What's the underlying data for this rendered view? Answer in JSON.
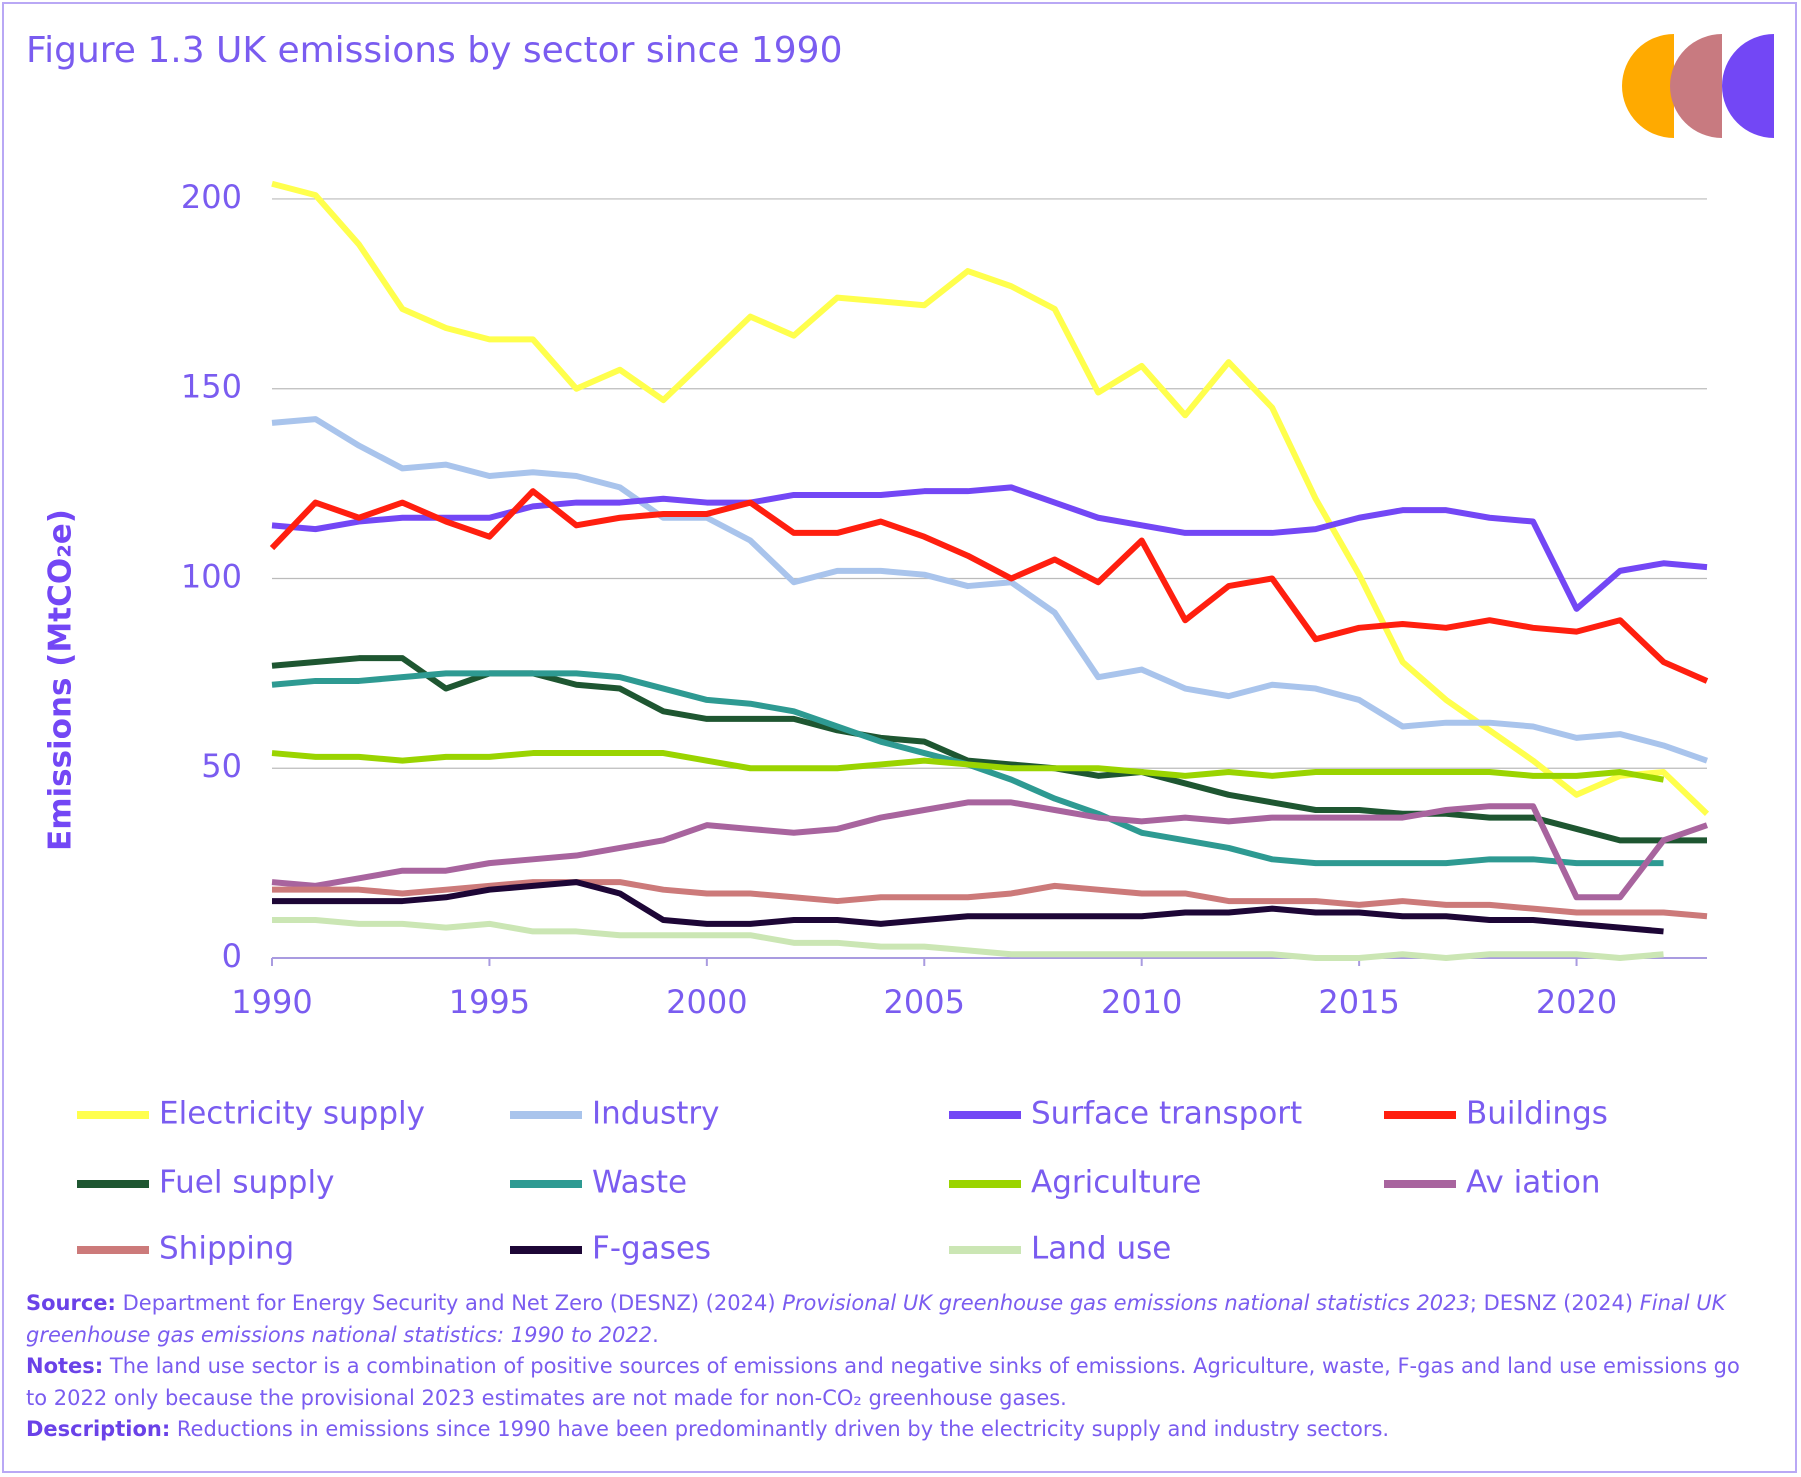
{
  "chart_data": {
    "type": "line",
    "title": "Figure 1.3 UK emissions by sector since 1990",
    "y_label": "Emissions (MtCO₂e)",
    "x": [
      1990,
      1991,
      1992,
      1993,
      1994,
      1995,
      1996,
      1997,
      1998,
      1999,
      2000,
      2001,
      2002,
      2003,
      2004,
      2005,
      2006,
      2007,
      2008,
      2009,
      2010,
      2011,
      2012,
      2013,
      2014,
      2015,
      2016,
      2017,
      2018,
      2019,
      2020,
      2021,
      2022,
      2023
    ],
    "xlim": [
      1990,
      2023
    ],
    "xticks": [
      1990,
      1995,
      2000,
      2005,
      2010,
      2015,
      2020
    ],
    "ylim": [
      0,
      210
    ],
    "yticks": [
      0,
      50,
      100,
      150,
      200
    ],
    "grid": true,
    "series": [
      {
        "name": "Electricity supply",
        "color": "#ffff4d",
        "values": [
          204,
          201,
          188,
          171,
          166,
          163,
          163,
          150,
          155,
          147,
          158,
          169,
          164,
          174,
          173,
          172,
          181,
          177,
          171,
          149,
          156,
          143,
          157,
          145,
          121,
          101,
          78,
          68,
          60,
          52,
          43,
          48,
          49,
          38
        ]
      },
      {
        "name": "Industry",
        "color": "#a9c4ec",
        "values": [
          141,
          142,
          135,
          129,
          130,
          127,
          128,
          127,
          124,
          116,
          116,
          110,
          99,
          102,
          102,
          101,
          98,
          99,
          91,
          74,
          76,
          71,
          69,
          72,
          71,
          68,
          61,
          62,
          62,
          61,
          58,
          59,
          56,
          52
        ]
      },
      {
        "name": "Surface transport",
        "color": "#7347f5",
        "values": [
          114,
          113,
          115,
          116,
          116,
          116,
          119,
          120,
          120,
          121,
          120,
          120,
          122,
          122,
          122,
          123,
          123,
          124,
          120,
          116,
          114,
          112,
          112,
          112,
          113,
          116,
          118,
          118,
          116,
          115,
          92,
          102,
          104,
          103
        ]
      },
      {
        "name": "Buildings",
        "color": "#ff1f0f",
        "values": [
          108,
          120,
          116,
          120,
          115,
          111,
          123,
          114,
          116,
          117,
          117,
          120,
          112,
          112,
          115,
          111,
          106,
          100,
          105,
          99,
          110,
          89,
          98,
          100,
          84,
          87,
          88,
          87,
          89,
          87,
          86,
          89,
          78,
          73
        ]
      },
      {
        "name": "Fuel supply",
        "color": "#1e5631",
        "values": [
          77,
          78,
          79,
          79,
          71,
          75,
          75,
          72,
          71,
          65,
          63,
          63,
          63,
          60,
          58,
          57,
          52,
          51,
          50,
          48,
          49,
          46,
          43,
          41,
          39,
          39,
          38,
          38,
          37,
          37,
          34,
          31,
          31,
          31
        ]
      },
      {
        "name": "Waste",
        "color": "#2e9a92",
        "values": [
          72,
          73,
          73,
          74,
          75,
          75,
          75,
          75,
          74,
          71,
          68,
          67,
          65,
          61,
          57,
          54,
          51,
          47,
          42,
          38,
          33,
          31,
          29,
          26,
          25,
          25,
          25,
          25,
          26,
          26,
          25,
          25,
          25,
          null
        ]
      },
      {
        "name": "Agriculture",
        "color": "#9ad400",
        "values": [
          54,
          53,
          53,
          52,
          53,
          53,
          54,
          54,
          54,
          54,
          52,
          50,
          50,
          50,
          51,
          52,
          51,
          50,
          50,
          50,
          49,
          48,
          49,
          48,
          49,
          49,
          49,
          49,
          49,
          48,
          48,
          49,
          47,
          null
        ]
      },
      {
        "name": "Av iation",
        "color": "#a8649e",
        "values": [
          20,
          19,
          21,
          23,
          23,
          25,
          26,
          27,
          29,
          31,
          35,
          34,
          33,
          34,
          37,
          39,
          41,
          41,
          39,
          37,
          36,
          37,
          36,
          37,
          37,
          37,
          37,
          39,
          40,
          40,
          16,
          16,
          31,
          35
        ]
      },
      {
        "name": "Shipping",
        "color": "#cc7a7a",
        "values": [
          18,
          18,
          18,
          17,
          18,
          19,
          20,
          20,
          20,
          18,
          17,
          17,
          16,
          15,
          16,
          16,
          16,
          17,
          19,
          18,
          17,
          17,
          15,
          15,
          15,
          14,
          15,
          14,
          14,
          13,
          12,
          12,
          12,
          11
        ]
      },
      {
        "name": "F-gases",
        "color": "#1d0636",
        "values": [
          15,
          15,
          15,
          15,
          16,
          18,
          19,
          20,
          17,
          10,
          9,
          9,
          10,
          10,
          9,
          10,
          11,
          11,
          11,
          11,
          11,
          12,
          12,
          13,
          12,
          12,
          11,
          11,
          10,
          10,
          9,
          8,
          7,
          null
        ]
      },
      {
        "name": "Land use",
        "color": "#cbe6b4",
        "values": [
          10,
          10,
          9,
          9,
          8,
          9,
          7,
          7,
          6,
          6,
          6,
          6,
          4,
          4,
          3,
          3,
          2,
          1,
          1,
          1,
          1,
          1,
          1,
          1,
          0,
          0,
          1,
          0,
          1,
          1,
          1,
          0,
          1,
          null
        ]
      }
    ]
  },
  "notes": {
    "source_label": "Source:",
    "source_1": " Department for Energy Security and Net Zero (DESNZ) (2024) ",
    "source_2": "Provisional UK greenhouse gas emissions national statistics 2023",
    "source_3": "; DESNZ (2024) ",
    "source_4": "Final UK greenhouse gas emissions national statistics: 1990 to 2022",
    "source_5": ".",
    "notes_label": "Notes:",
    "notes_text": " The land use sector is a combination of positive sources of emissions and negative sinks of emissions. Agriculture, waste, F-gas and land use emissions go to 2022 only because the provisional 2023 estimates are not made for non-CO₂ greenhouse gases.",
    "description_label": "Description:",
    "description_text": " Reductions in emissions since 1990 have been predominantly driven by the electricity supply and industry sectors."
  }
}
